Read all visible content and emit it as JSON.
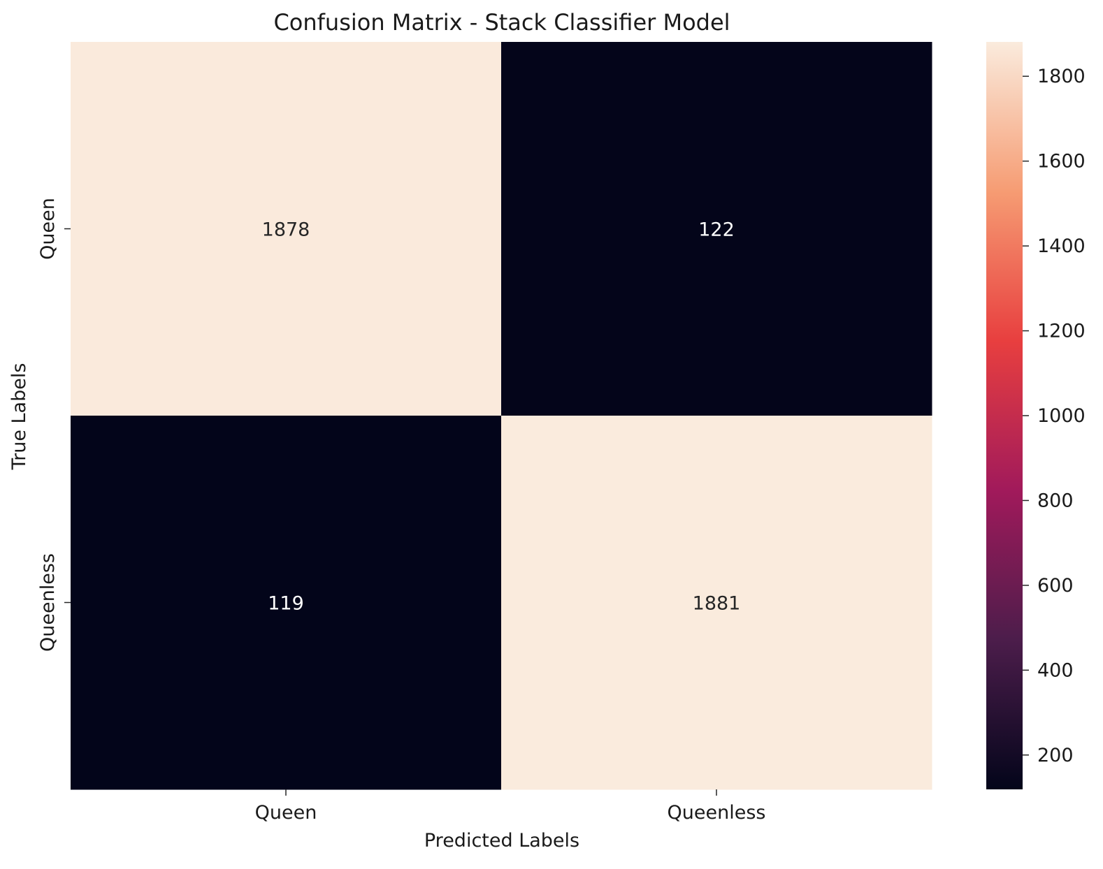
{
  "chart_data": {
    "type": "heatmap",
    "title": "Confusion Matrix - Stack Classifier Model",
    "xlabel": "Predicted Labels",
    "ylabel": "True Labels",
    "x_categories": [
      "Queen",
      "Queenless"
    ],
    "y_categories": [
      "Queen",
      "Queenless"
    ],
    "matrix": [
      [
        1878,
        122
      ],
      [
        119,
        1881
      ]
    ],
    "colorbar": {
      "min": 119,
      "max": 1881,
      "ticks": [
        200,
        400,
        600,
        800,
        1000,
        1200,
        1400,
        1600,
        1800
      ],
      "colormap": "rocket",
      "colormap_stops": [
        "#03051a",
        "#4c1d4b",
        "#a11a5b",
        "#e83f3f",
        "#f69c73",
        "#faebdd"
      ]
    }
  }
}
